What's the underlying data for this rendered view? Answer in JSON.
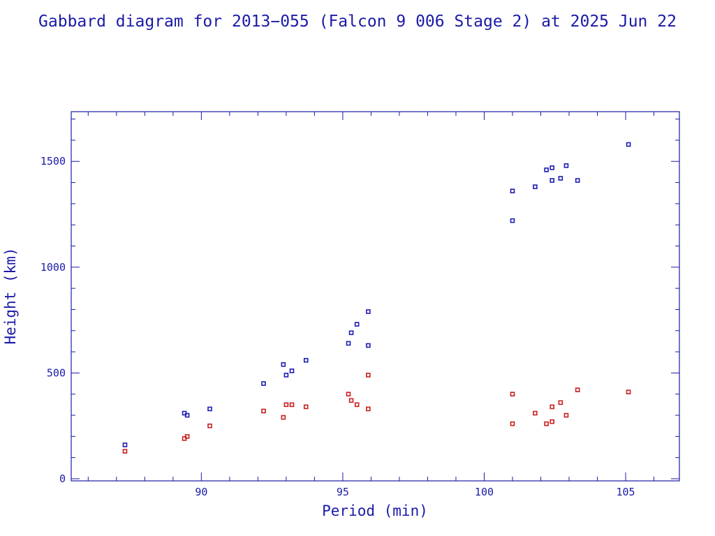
{
  "chart_data": {
    "type": "scatter",
    "title": "Gabbard diagram for 2013−055 (Falcon 9 006 Stage 2) at 2025 Jun 22",
    "xlabel": "Period (min)",
    "ylabel": "Height (km)",
    "xlim": [
      85.4,
      106.9
    ],
    "ylim": [
      -10,
      1735
    ],
    "xticks": [
      90,
      95,
      100,
      105
    ],
    "yticks": [
      0,
      500,
      1000,
      1500
    ],
    "grid": false,
    "series": [
      {
        "color": "#1c1cb4",
        "x": [
          87.3,
          89.4,
          89.5,
          90.3,
          92.2,
          92.9,
          93.0,
          93.2,
          93.7,
          95.2,
          95.3,
          95.5,
          95.9,
          95.9,
          101.0,
          101.0,
          101.8,
          102.2,
          102.4,
          102.4,
          102.7,
          102.9,
          103.3,
          105.1
        ],
        "y": [
          160,
          310,
          300,
          330,
          450,
          540,
          490,
          510,
          560,
          640,
          690,
          730,
          630,
          790,
          1220,
          1360,
          1380,
          1460,
          1410,
          1470,
          1420,
          1480,
          1410,
          1580
        ]
      },
      {
        "color": "#c81e1e",
        "x": [
          87.3,
          89.4,
          89.5,
          90.3,
          92.2,
          92.9,
          93.0,
          93.2,
          93.7,
          95.2,
          95.3,
          95.5,
          95.9,
          95.9,
          101.0,
          101.0,
          101.8,
          102.2,
          102.4,
          102.4,
          102.7,
          102.9,
          103.3,
          105.1
        ],
        "y": [
          130,
          190,
          200,
          250,
          320,
          290,
          350,
          350,
          340,
          400,
          370,
          350,
          330,
          490,
          260,
          400,
          310,
          260,
          340,
          270,
          360,
          300,
          420,
          410
        ]
      }
    ],
    "colors": {
      "axis": "#1a1aa8",
      "text": "#1a1aa8"
    }
  }
}
